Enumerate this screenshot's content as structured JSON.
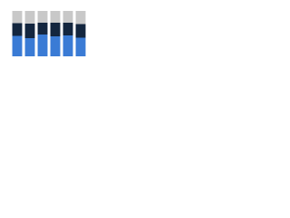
{
  "chart_data": {
    "type": "stacked_bar",
    "categories": [
      null,
      null,
      null,
      null,
      null,
      null
    ],
    "series": [
      {
        "color": "#3a7bd5",
        "values": [
          45,
          40,
          48,
          44,
          46,
          41
        ]
      },
      {
        "color": "#13263f",
        "values": [
          28,
          32,
          26,
          30,
          28,
          30
        ]
      },
      {
        "color": "#c8c8c8",
        "values": [
          27,
          28,
          26,
          26,
          26,
          29
        ]
      }
    ],
    "ylim": [
      0,
      100
    ]
  }
}
